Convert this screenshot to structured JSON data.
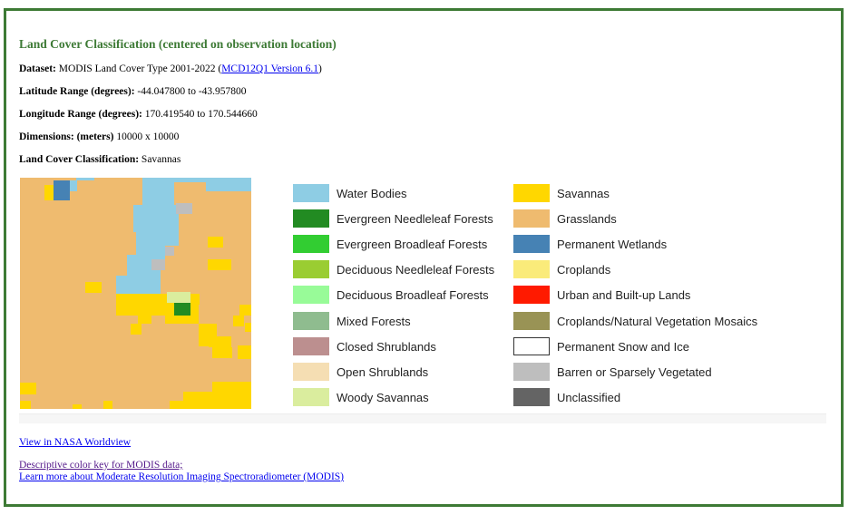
{
  "header": {
    "title": "Land Cover Classification (centered on observation location)"
  },
  "info": {
    "dataset_label": "Dataset:",
    "dataset_value": "MODIS Land Cover Type 2001-2022 (",
    "dataset_link": "MCD12Q1 Version 6.1",
    "dataset_close": ")",
    "lat_label": "Latitude Range (degrees):",
    "lat_value": "-44.047800 to -43.957800",
    "lon_label": "Longitude Range (degrees):",
    "lon_value": "170.419540 to 170.544660",
    "dim_label": "Dimensions: (meters)",
    "dim_value": "10000 x 10000",
    "class_label": "Land Cover Classification:",
    "class_value": "Savannas"
  },
  "legend": [
    {
      "label": "Water Bodies",
      "color": "#8ecde4"
    },
    {
      "label": "Evergreen Needleleaf Forests",
      "color": "#228b22"
    },
    {
      "label": "Evergreen Broadleaf Forests",
      "color": "#32cd32"
    },
    {
      "label": "Deciduous Needleleaf Forests",
      "color": "#9acd32"
    },
    {
      "label": "Deciduous Broadleaf Forests",
      "color": "#98fb98"
    },
    {
      "label": "Mixed Forests",
      "color": "#8fbc8f"
    },
    {
      "label": "Closed Shrublands",
      "color": "#bc8f8f"
    },
    {
      "label": "Open Shrublands",
      "color": "#f5deb3"
    },
    {
      "label": "Woody Savannas",
      "color": "#daed9e"
    },
    {
      "label": "Savannas",
      "color": "#ffd700"
    },
    {
      "label": "Grasslands",
      "color": "#efbb6f"
    },
    {
      "label": "Permanent Wetlands",
      "color": "#4682b4"
    },
    {
      "label": "Croplands",
      "color": "#faeb7a"
    },
    {
      "label": "Urban and Built-up Lands",
      "color": "#ff1a00"
    },
    {
      "label": "Croplands/Natural Vegetation Mosaics",
      "color": "#999355"
    },
    {
      "label": "Permanent Snow and Ice",
      "color": "#ffffff"
    },
    {
      "label": "Barren or Sparsely Vegetated",
      "color": "#bebebe"
    },
    {
      "label": "Unclassified",
      "color": "#646464"
    }
  ],
  "links": {
    "worldview": "View in NASA Worldview",
    "color_key": "Descriptive color key for MODIS data;",
    "learn_more": "Learn more about Moderate Resolution Imaging Spectroradiometer (MODIS)"
  }
}
